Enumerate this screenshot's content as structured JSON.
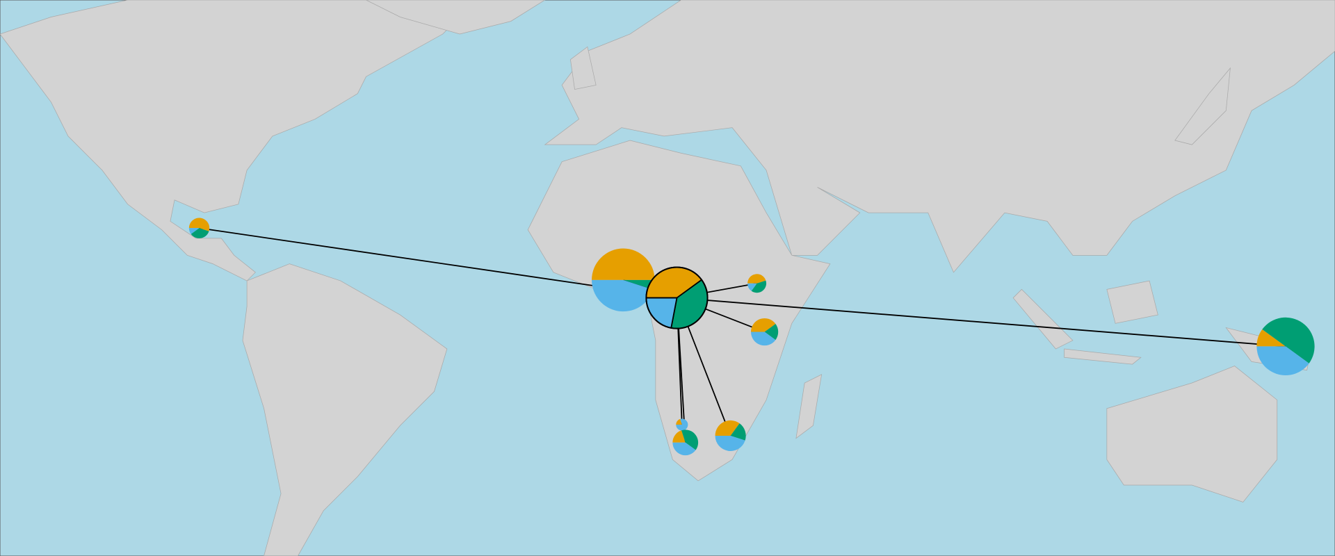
{
  "colors": [
    "#e69f00",
    "#009e73",
    "#56b4e9"
  ],
  "pies": [
    {
      "values": [
        55,
        35,
        10
      ]
    },
    {
      "values": [
        50,
        5,
        45
      ]
    },
    {
      "values": [
        40,
        38,
        22
      ]
    },
    {
      "values": [
        45,
        40,
        15
      ]
    },
    {
      "values": [
        40,
        20,
        40
      ]
    },
    {
      "values": [
        20,
        0,
        80
      ]
    },
    {
      "values": [
        20,
        40,
        40
      ]
    },
    {
      "values": [
        35,
        20,
        45
      ]
    },
    {
      "values": [
        10,
        50,
        40
      ]
    }
  ]
}
